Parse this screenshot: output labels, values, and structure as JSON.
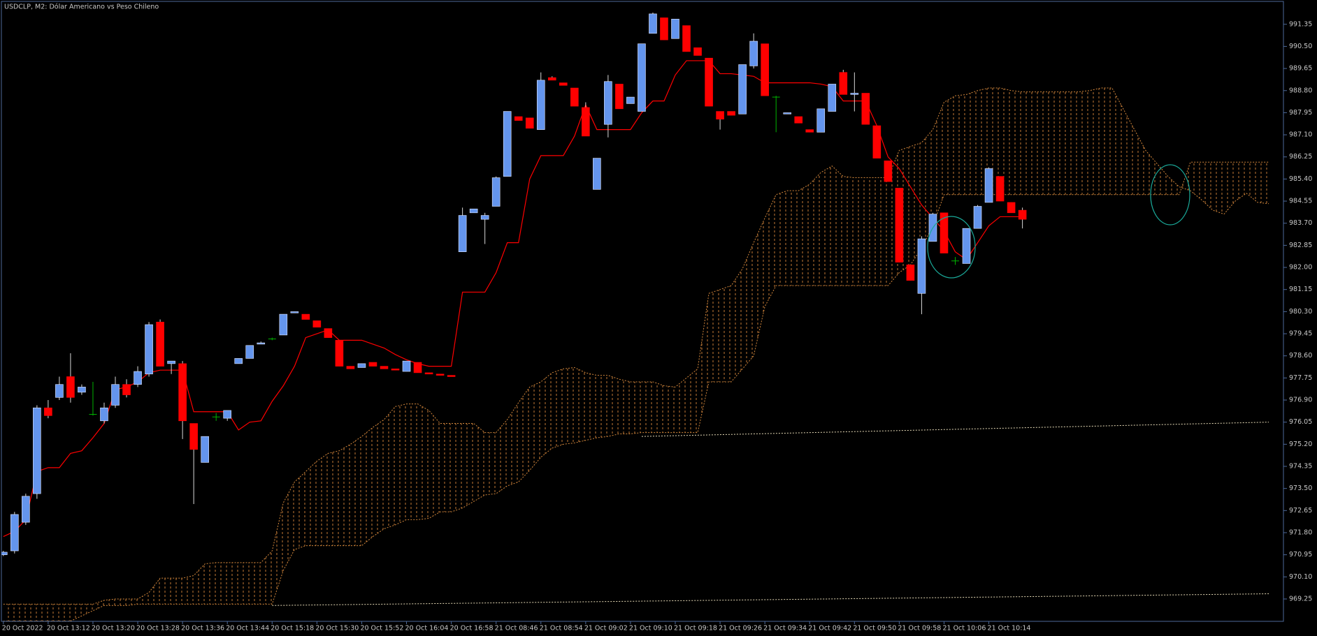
{
  "chart_data": {
    "type": "candlestick",
    "title": "USDCLP, M2:  Dólar Americano vs Peso Chileno",
    "categories": [
      "20 Oct 2022",
      null,
      null,
      null,
      "20 Oct 13:12",
      null,
      null,
      null,
      "20 Oct 13:20",
      null,
      null,
      null,
      "20 Oct 13:28",
      null,
      null,
      null,
      "20 Oct 13:36",
      null,
      null,
      null,
      "20 Oct 13:44",
      null,
      null,
      null,
      "20 Oct 15:18",
      null,
      null,
      null,
      "20 Oct 15:30",
      null,
      null,
      null,
      "20 Oct 15:52",
      null,
      null,
      null,
      "20 Oct 16:04",
      null,
      null,
      null,
      "20 Oct 16:58",
      null,
      null,
      null,
      "21 Oct 08:46",
      null,
      null,
      null,
      "21 Oct 08:54",
      null,
      null,
      null,
      "21 Oct 09:02",
      null,
      null,
      null,
      "21 Oct 09:10",
      null,
      null,
      null,
      "21 Oct 09:18",
      null,
      null,
      null,
      "21 Oct 09:26",
      null,
      null,
      null,
      "21 Oct 09:34",
      null,
      null,
      null,
      "21 Oct 09:42",
      null,
      null,
      null,
      "21 Oct 09:50",
      null,
      null,
      null,
      "21 Oct 09:58",
      null,
      null,
      null,
      "21 Oct 10:06",
      null,
      null,
      null,
      "21 Oct 10:14",
      null,
      null,
      null,
      null,
      null,
      null,
      null,
      null,
      null,
      null,
      null,
      null,
      null,
      null,
      null,
      null,
      null,
      null,
      null,
      null,
      null,
      null,
      null,
      null,
      null
    ],
    "ohlc": {
      "up_color": "#6495ed",
      "down_color": "#ff0000",
      "doji_color": "#00b400",
      "wick_color": "#d8d8d8",
      "open": [
        970.95,
        971.1,
        972.2,
        973.3,
        976.6,
        977.0,
        977.8,
        977.2,
        976.35,
        976.1,
        976.7,
        977.5,
        977.5,
        977.9,
        979.9,
        978.3,
        978.3,
        976.0,
        974.5,
        976.25,
        976.2,
        978.3,
        978.5,
        979.05,
        979.25,
        979.4,
        980.25,
        980.2,
        979.95,
        979.65,
        979.2,
        978.2,
        978.15,
        978.35,
        978.2,
        978.1,
        978.0,
        978.35,
        977.95,
        977.9,
        977.85,
        982.6,
        984.1,
        983.85,
        984.35,
        985.5,
        987.8,
        987.75,
        987.3,
        989.3,
        989.1,
        988.9,
        988.15,
        985.0,
        987.5,
        989.05,
        988.3,
        988.0,
        991.0,
        991.6,
        990.8,
        991.3,
        990.45,
        990.05,
        988.0,
        988.0,
        987.9,
        989.75,
        990.6,
        988.55,
        987.9,
        987.8,
        987.3,
        987.2,
        988.0,
        989.5,
        988.65,
        988.7,
        987.45,
        986.1,
        985.05,
        982.1,
        981.0,
        983.0,
        984.1,
        982.25,
        982.15,
        983.5,
        984.5,
        985.5,
        984.5,
        984.2,
        null,
        null,
        null,
        null,
        null,
        null,
        null,
        null,
        null,
        null,
        null,
        null,
        null,
        null,
        null,
        null,
        null,
        null,
        null,
        null,
        null,
        null
      ],
      "high": [
        971.1,
        972.6,
        973.3,
        976.7,
        976.9,
        977.8,
        978.7,
        977.5,
        977.6,
        976.8,
        977.8,
        977.7,
        978.2,
        979.9,
        980.0,
        978.4,
        978.4,
        976.0,
        975.5,
        976.4,
        976.5,
        978.5,
        979.0,
        979.15,
        979.3,
        980.2,
        980.3,
        980.2,
        979.95,
        979.65,
        979.2,
        978.2,
        978.3,
        978.35,
        978.2,
        978.1,
        978.4,
        978.35,
        977.95,
        977.9,
        977.85,
        984.3,
        984.25,
        984.1,
        985.5,
        988.0,
        987.8,
        987.75,
        989.5,
        989.35,
        989.1,
        988.9,
        988.35,
        986.2,
        989.4,
        989.05,
        988.55,
        990.6,
        991.8,
        991.6,
        991.55,
        991.3,
        990.45,
        990.05,
        988.0,
        988.0,
        989.8,
        991.0,
        990.6,
        988.6,
        987.95,
        987.8,
        987.3,
        988.1,
        989.05,
        989.6,
        989.5,
        988.7,
        987.45,
        986.1,
        985.05,
        982.1,
        983.2,
        984.1,
        984.1,
        982.4,
        983.5,
        984.4,
        985.85,
        985.5,
        984.5,
        984.3,
        null,
        null,
        null,
        null,
        null,
        null,
        null,
        null,
        null,
        null,
        null,
        null,
        null,
        null,
        null,
        null,
        null,
        null,
        null,
        null,
        null,
        null
      ],
      "low": [
        970.9,
        971.0,
        972.1,
        973.1,
        976.2,
        976.9,
        976.8,
        977.1,
        976.3,
        976.0,
        976.6,
        977.0,
        977.4,
        977.8,
        978.2,
        977.9,
        975.4,
        972.9,
        974.5,
        976.1,
        976.1,
        978.3,
        978.5,
        979.05,
        979.2,
        979.4,
        980.25,
        980.0,
        979.7,
        979.3,
        978.2,
        978.1,
        978.15,
        978.2,
        978.1,
        978.05,
        978.0,
        977.95,
        977.9,
        977.85,
        977.8,
        982.6,
        984.1,
        982.9,
        984.35,
        985.5,
        987.65,
        987.35,
        987.3,
        989.2,
        989.0,
        988.2,
        987.05,
        985.0,
        987.0,
        988.1,
        988.3,
        988.0,
        991.0,
        990.75,
        990.8,
        990.3,
        990.15,
        988.2,
        987.3,
        987.85,
        987.9,
        989.65,
        988.6,
        987.2,
        987.9,
        987.55,
        987.2,
        987.2,
        988.0,
        988.65,
        988.0,
        987.5,
        986.2,
        985.3,
        982.2,
        981.5,
        980.2,
        983.0,
        982.55,
        982.1,
        982.15,
        983.5,
        984.5,
        984.55,
        984.1,
        983.5,
        null,
        null,
        null,
        null,
        null,
        null,
        null,
        null,
        null,
        null,
        null,
        null,
        null,
        null,
        null,
        null,
        null,
        null,
        null,
        null,
        null,
        null
      ],
      "close": [
        971.05,
        972.5,
        973.2,
        976.6,
        976.3,
        977.5,
        977.0,
        977.4,
        976.35,
        976.6,
        977.5,
        977.1,
        978.0,
        979.8,
        978.2,
        978.4,
        976.1,
        975.0,
        975.5,
        976.25,
        976.5,
        978.5,
        979.0,
        979.1,
        979.25,
        980.2,
        980.3,
        980.0,
        979.7,
        979.3,
        978.2,
        978.1,
        978.3,
        978.2,
        978.1,
        978.05,
        978.4,
        977.95,
        977.9,
        977.85,
        977.8,
        984.0,
        984.25,
        984.0,
        985.45,
        988.0,
        987.65,
        987.35,
        989.2,
        989.2,
        989.0,
        988.2,
        987.05,
        986.2,
        989.15,
        988.1,
        988.55,
        990.6,
        991.75,
        990.75,
        991.55,
        990.3,
        990.15,
        988.2,
        987.7,
        987.85,
        989.8,
        990.7,
        988.6,
        988.55,
        987.95,
        987.55,
        987.2,
        988.1,
        989.05,
        988.65,
        988.7,
        987.5,
        986.2,
        985.3,
        982.2,
        981.5,
        983.1,
        984.05,
        982.55,
        982.25,
        983.5,
        984.35,
        985.8,
        984.55,
        984.1,
        983.85,
        null,
        null,
        null,
        null,
        null,
        null,
        null,
        null,
        null,
        null,
        null,
        null,
        null,
        null,
        null,
        null,
        null,
        null,
        null,
        null,
        null,
        null
      ]
    },
    "kijun": {
      "color": "#ff0000",
      "values": [
        971.65,
        971.85,
        972.3,
        974.15,
        974.3,
        974.3,
        974.85,
        974.95,
        975.45,
        976.0,
        977.3,
        977.4,
        977.6,
        977.95,
        978.05,
        978.05,
        978.05,
        976.45,
        976.45,
        976.45,
        976.45,
        975.75,
        976.05,
        976.1,
        976.85,
        977.45,
        978.2,
        979.3,
        979.45,
        979.6,
        979.2,
        979.2,
        979.2,
        979.05,
        978.9,
        978.65,
        978.45,
        978.3,
        978.2,
        978.2,
        978.2,
        981.05,
        981.05,
        981.05,
        981.8,
        982.95,
        982.95,
        985.4,
        986.3,
        986.3,
        986.3,
        987.05,
        988.25,
        987.3,
        987.3,
        987.3,
        987.3,
        987.95,
        988.4,
        988.4,
        989.4,
        989.95,
        989.95,
        989.95,
        989.45,
        989.45,
        989.4,
        989.35,
        989.1,
        989.1,
        989.1,
        989.1,
        989.1,
        989.05,
        988.95,
        988.4,
        988.4,
        988.4,
        987.45,
        986.25,
        985.8,
        985.1,
        984.4,
        983.9,
        983.4,
        982.6,
        982.3,
        982.95,
        983.6,
        983.95,
        983.95,
        983.95,
        null,
        null,
        null,
        null,
        null,
        null,
        null,
        null,
        null,
        null,
        null,
        null,
        null,
        null,
        null,
        null,
        null,
        null,
        null,
        null,
        null,
        null
      ]
    },
    "cloud": {
      "color": "#d2873c",
      "span_a": [
        969.05,
        969.05,
        969.05,
        969.05,
        969.05,
        969.05,
        969.05,
        969.05,
        969.05,
        969.2,
        969.25,
        969.25,
        969.25,
        969.5,
        970.05,
        970.05,
        970.05,
        970.15,
        970.6,
        970.65,
        970.65,
        970.65,
        970.65,
        970.65,
        971.1,
        972.95,
        973.75,
        974.15,
        974.55,
        974.85,
        974.95,
        975.2,
        975.5,
        975.85,
        976.15,
        976.65,
        976.75,
        976.75,
        976.5,
        976.0,
        976.0,
        976.0,
        976.0,
        975.65,
        975.65,
        976.15,
        976.8,
        977.4,
        977.6,
        977.95,
        978.1,
        978.15,
        977.95,
        977.85,
        977.85,
        977.7,
        977.6,
        977.6,
        977.6,
        977.45,
        977.4,
        977.75,
        978.1,
        981.0,
        981.15,
        981.3,
        981.95,
        982.95,
        983.9,
        984.8,
        984.95,
        984.95,
        985.2,
        985.65,
        985.9,
        985.5,
        985.45,
        985.45,
        985.45,
        985.45,
        986.5,
        986.65,
        986.8,
        987.3,
        988.35,
        988.6,
        988.65,
        988.8,
        988.9,
        988.9,
        988.8,
        988.75,
        988.75,
        988.75,
        988.75,
        988.75,
        988.75,
        988.8,
        988.9,
        988.9,
        988.1,
        987.3,
        986.5,
        986.0,
        985.5,
        985.1,
        984.95,
        984.6,
        984.2,
        984.05,
        984.55,
        984.85,
        984.5,
        984.45
      ],
      "span_b": [
        968.4,
        968.4,
        968.4,
        968.4,
        968.4,
        968.4,
        968.4,
        968.6,
        968.8,
        969.0,
        969.0,
        969.0,
        969.05,
        969.05,
        969.05,
        969.05,
        969.05,
        969.05,
        969.05,
        969.05,
        969.05,
        969.05,
        969.05,
        969.05,
        969.05,
        970.35,
        971.15,
        971.3,
        971.3,
        971.3,
        971.3,
        971.3,
        971.3,
        971.65,
        971.95,
        972.1,
        972.3,
        972.3,
        972.35,
        972.6,
        972.6,
        972.75,
        973.0,
        973.25,
        973.3,
        973.6,
        973.75,
        974.2,
        974.7,
        975.05,
        975.2,
        975.25,
        975.35,
        975.45,
        975.5,
        975.6,
        975.6,
        975.65,
        975.65,
        975.65,
        975.65,
        975.65,
        975.65,
        977.6,
        977.6,
        977.6,
        978.1,
        978.6,
        980.5,
        981.3,
        981.3,
        981.3,
        981.3,
        981.3,
        981.3,
        981.3,
        981.3,
        981.3,
        981.3,
        981.3,
        981.8,
        982.1,
        982.75,
        983.6,
        984.8,
        984.8,
        984.8,
        984.8,
        984.8,
        984.8,
        984.8,
        984.8,
        984.8,
        984.8,
        984.8,
        984.8,
        984.8,
        984.8,
        984.8,
        984.8,
        984.8,
        984.8,
        984.8,
        984.8,
        984.8,
        984.8,
        986.05,
        986.05,
        986.05,
        986.05,
        986.05,
        986.05,
        986.05,
        986.05
      ]
    },
    "trend_lines": [
      {
        "color": "#e8dcb8",
        "from": [
          57,
          975.5
        ],
        "to": [
          113,
          976.05
        ]
      },
      {
        "color": "#e8dcb8",
        "from": [
          24,
          969.0
        ],
        "to": [
          113,
          969.45
        ]
      }
    ],
    "ylim": [
      968.39,
      992.23
    ],
    "yticks": [
      991.35,
      {
        "value": 990.5,
        "label": "990.50"
      },
      989.65,
      {
        "value": 988.8,
        "label": "988.80"
      },
      987.95,
      {
        "value": 987.1,
        "label": "987.10"
      },
      986.25,
      {
        "value": 985.4,
        "label": "985.40"
      },
      984.55,
      {
        "value": 983.7,
        "label": "983.70"
      },
      982.85,
      {
        "value": 982.0,
        "label": "982.00"
      },
      981.15,
      {
        "value": 980.3,
        "label": "980.30"
      },
      979.45,
      {
        "value": 978.6,
        "label": "978.60"
      },
      977.75,
      {
        "value": 976.9,
        "label": "976.90"
      },
      976.05,
      {
        "value": 975.2,
        "label": "975.20"
      },
      974.35,
      {
        "value": 973.5,
        "label": "973.50"
      },
      972.65,
      {
        "value": 971.8,
        "label": "971.80"
      },
      970.95,
      {
        "value": 970.1,
        "label": "970.10"
      },
      969.25
    ],
    "grid": false
  }
}
